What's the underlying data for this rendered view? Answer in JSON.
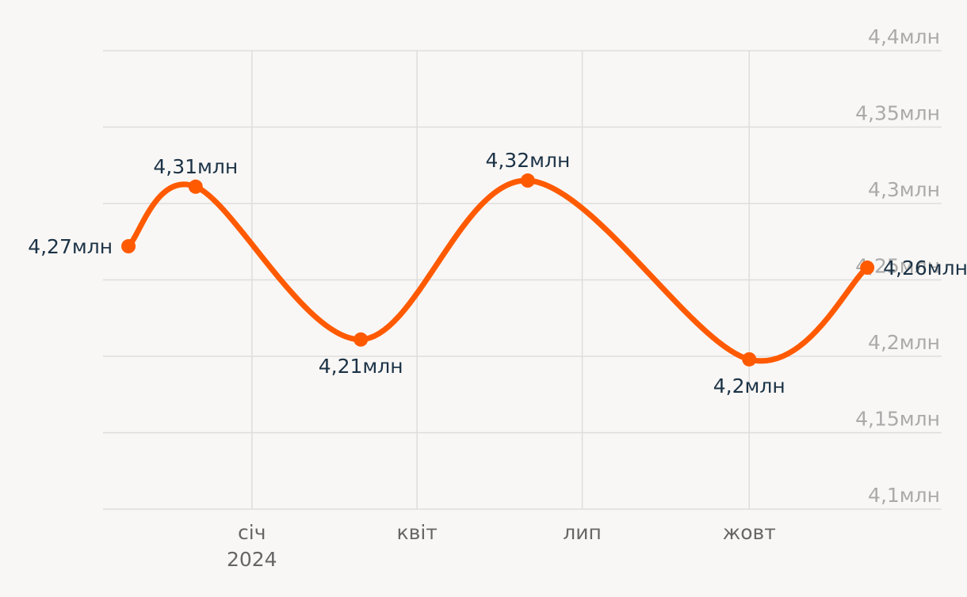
{
  "chart_data": {
    "type": "line",
    "title": "",
    "xlabel": "",
    "ylabel": "",
    "x_ticks": [
      {
        "date": "2024-01-01",
        "label": "січ",
        "sublabel": "2024"
      },
      {
        "date": "2024-04-01",
        "label": "квіт",
        "sublabel": ""
      },
      {
        "date": "2024-07-01",
        "label": "лип",
        "sublabel": ""
      },
      {
        "date": "2024-10-01",
        "label": "жовт",
        "sublabel": ""
      }
    ],
    "y_ticks": [
      {
        "value": 4.1,
        "label": "4,1млн"
      },
      {
        "value": 4.15,
        "label": "4,15млн"
      },
      {
        "value": 4.2,
        "label": "4,2млн"
      },
      {
        "value": 4.25,
        "label": "4,25млн"
      },
      {
        "value": 4.3,
        "label": "4,3млн"
      },
      {
        "value": 4.35,
        "label": "4,35млн"
      },
      {
        "value": 4.4,
        "label": "4,4млн"
      }
    ],
    "ylim": [
      4.1,
      4.4
    ],
    "xlim": [
      "2023-10-11",
      "2025-01-15"
    ],
    "grid": true,
    "y_axis_position": "right",
    "series": [
      {
        "color": "#ff5a00",
        "points": [
          {
            "date": "2023-10-25",
            "value": 4.272,
            "label": "4,27млн",
            "label_pos": "left"
          },
          {
            "date": "2023-12-01",
            "value": 4.311,
            "label": "4,31млн",
            "label_pos": "above"
          },
          {
            "date": "2024-03-01",
            "value": 4.211,
            "label": "4,21млн",
            "label_pos": "below"
          },
          {
            "date": "2024-06-01",
            "value": 4.315,
            "label": "4,32млн",
            "label_pos": "above"
          },
          {
            "date": "2024-10-01",
            "value": 4.198,
            "label": "4,2млн",
            "label_pos": "below"
          },
          {
            "date": "2024-12-05",
            "value": 4.258,
            "label": "4,26млн",
            "label_pos": "right"
          }
        ]
      }
    ]
  }
}
